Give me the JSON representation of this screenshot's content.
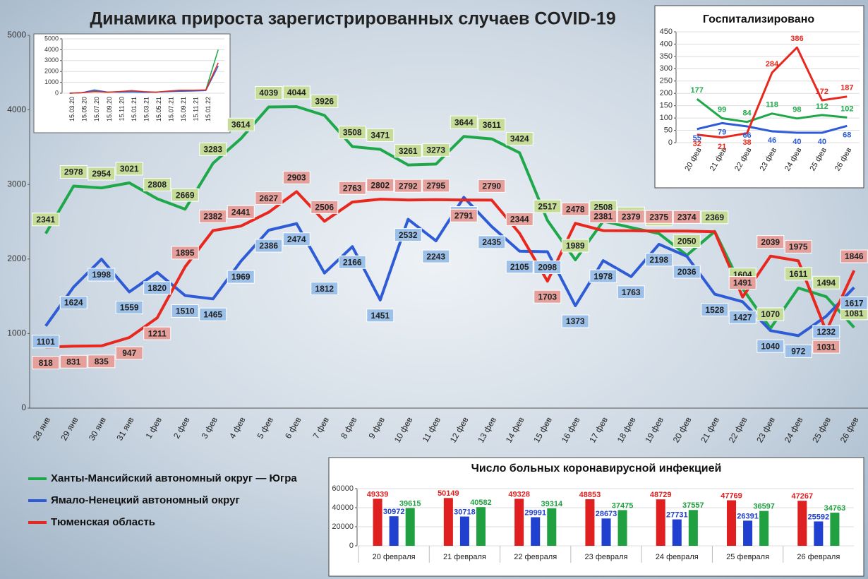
{
  "chart_data": [
    {
      "type": "line",
      "title": "Динамика прироста зарегистрированных случаев COVID-19",
      "categories": [
        "28 янв",
        "29 янв",
        "30 янв",
        "31 янв",
        "1 фев",
        "2 фев",
        "3 фев",
        "4 фев",
        "5 фев",
        "6 фев",
        "7 фев",
        "8 фев",
        "9 фев",
        "10 фев",
        "11 фев",
        "12 фев",
        "13 фев",
        "14 фев",
        "15 фев",
        "16 фев",
        "17 фев",
        "18 фев",
        "19 фев",
        "20 фев",
        "21 фев",
        "22 фев",
        "23 фев",
        "24 фев",
        "25 фев",
        "26 фев"
      ],
      "series": [
        {
          "name": "Ханты-Мансийский автономный округ — Югра",
          "color": "#1fa84a",
          "values": [
            2341,
            2978,
            2954,
            3021,
            2808,
            2669,
            3283,
            3614,
            4039,
            4044,
            3926,
            3508,
            3471,
            3261,
            3273,
            3644,
            3611,
            3424,
            2517,
            1989,
            2508,
            2422,
            2341,
            2050,
            2369,
            1604,
            1070,
            1611,
            1494,
            1081
          ]
        },
        {
          "name": "Ямало-Ненецкий автономный округ",
          "color": "#2e5bd6",
          "values": [
            1101,
            1624,
            1998,
            1559,
            1820,
            1510,
            1465,
            1969,
            2386,
            2474,
            1812,
            2166,
            1451,
            2532,
            2243,
            2827,
            2435,
            2105,
            2098,
            1373,
            1978,
            1763,
            2198,
            2036,
            1528,
            1427,
            1040,
            972,
            1232,
            1617
          ]
        },
        {
          "name": "Тюменская область",
          "color": "#e8281e",
          "values": [
            818,
            831,
            835,
            947,
            1211,
            1895,
            2382,
            2441,
            2627,
            2903,
            2506,
            2763,
            2802,
            2792,
            2795,
            2791,
            2790,
            2344,
            1703,
            2478,
            2381,
            2379,
            2375,
            2374,
            2365,
            1491,
            2039,
            1975,
            1031,
            1846
          ],
          "value_labels": [
            "818",
            "831",
            "835",
            "947",
            "1211",
            "1895",
            "2382",
            "2441",
            "2627",
            "2903",
            "2506",
            "2763",
            "2802",
            "2792",
            "2795",
            "2791",
            "2790",
            "2344",
            "1703",
            "2478",
            "2381",
            "2379",
            "2375",
            "2374",
            null,
            "1491",
            "2039",
            "1975",
            "1031",
            "1846"
          ]
        }
      ],
      "ylim": [
        0,
        5000
      ],
      "yticks": [
        0,
        1000,
        2000,
        3000,
        4000,
        5000
      ],
      "legend": "bottom-left",
      "grid": false
    },
    {
      "type": "line",
      "categories": [
        "15.03.20",
        "15.05.20",
        "15.07.20",
        "15.09.20",
        "15.11.20",
        "15.01.21",
        "15.03.21",
        "15.05.21",
        "15.07.21",
        "15.09.21",
        "15.11.21",
        "15.01.22",
        null
      ],
      "series": [
        {
          "color": "#1fa84a",
          "values": [
            0,
            60,
            200,
            80,
            150,
            200,
            120,
            100,
            180,
            230,
            250,
            300,
            4000
          ]
        },
        {
          "color": "#2e5bd6",
          "values": [
            0,
            50,
            300,
            120,
            100,
            120,
            80,
            100,
            150,
            180,
            200,
            250,
            2500
          ]
        },
        {
          "color": "#e8281e",
          "values": [
            0,
            40,
            150,
            100,
            150,
            250,
            150,
            100,
            200,
            280,
            280,
            300,
            2800
          ]
        }
      ],
      "ylim": [
        0,
        5000
      ],
      "yticks": [
        0,
        1000,
        2000,
        3000,
        4000,
        5000
      ],
      "grid": true
    },
    {
      "type": "line",
      "title": "Госпитализировано",
      "categories": [
        "20 фев",
        "21 фев",
        "22 фев",
        "23 фев",
        "24 фев",
        "25 фев",
        "26 фев"
      ],
      "series": [
        {
          "color": "#1fa84a",
          "values": [
            177,
            99,
            84,
            118,
            98,
            112,
            102
          ]
        },
        {
          "color": "#2e5bd6",
          "values": [
            55,
            79,
            66,
            46,
            40,
            40,
            68
          ]
        },
        {
          "color": "#e8281e",
          "values": [
            32,
            21,
            38,
            284,
            386,
            172,
            187
          ]
        }
      ],
      "ylim": [
        0,
        450
      ],
      "yticks": [
        0,
        50,
        100,
        150,
        200,
        250,
        300,
        350,
        400,
        450
      ],
      "grid": true
    },
    {
      "type": "bar",
      "title": "Число больных коронавирусной инфекцией",
      "categories": [
        "20 февраля",
        "21 февраля",
        "22 февраля",
        "23 февраля",
        "24 февраля",
        "25 февраля",
        "26 февраля"
      ],
      "series": [
        {
          "color": "#e02020",
          "values": [
            49339,
            50149,
            49328,
            48853,
            48729,
            47769,
            47267
          ]
        },
        {
          "color": "#2040d0",
          "values": [
            30972,
            30718,
            29991,
            28673,
            27731,
            26391,
            25592
          ]
        },
        {
          "color": "#20a040",
          "values": [
            39615,
            40582,
            39314,
            37475,
            37557,
            36597,
            34763
          ]
        }
      ],
      "ylim": [
        0,
        60000
      ],
      "yticks": [
        0,
        20000,
        40000,
        60000
      ],
      "grid": true
    }
  ]
}
